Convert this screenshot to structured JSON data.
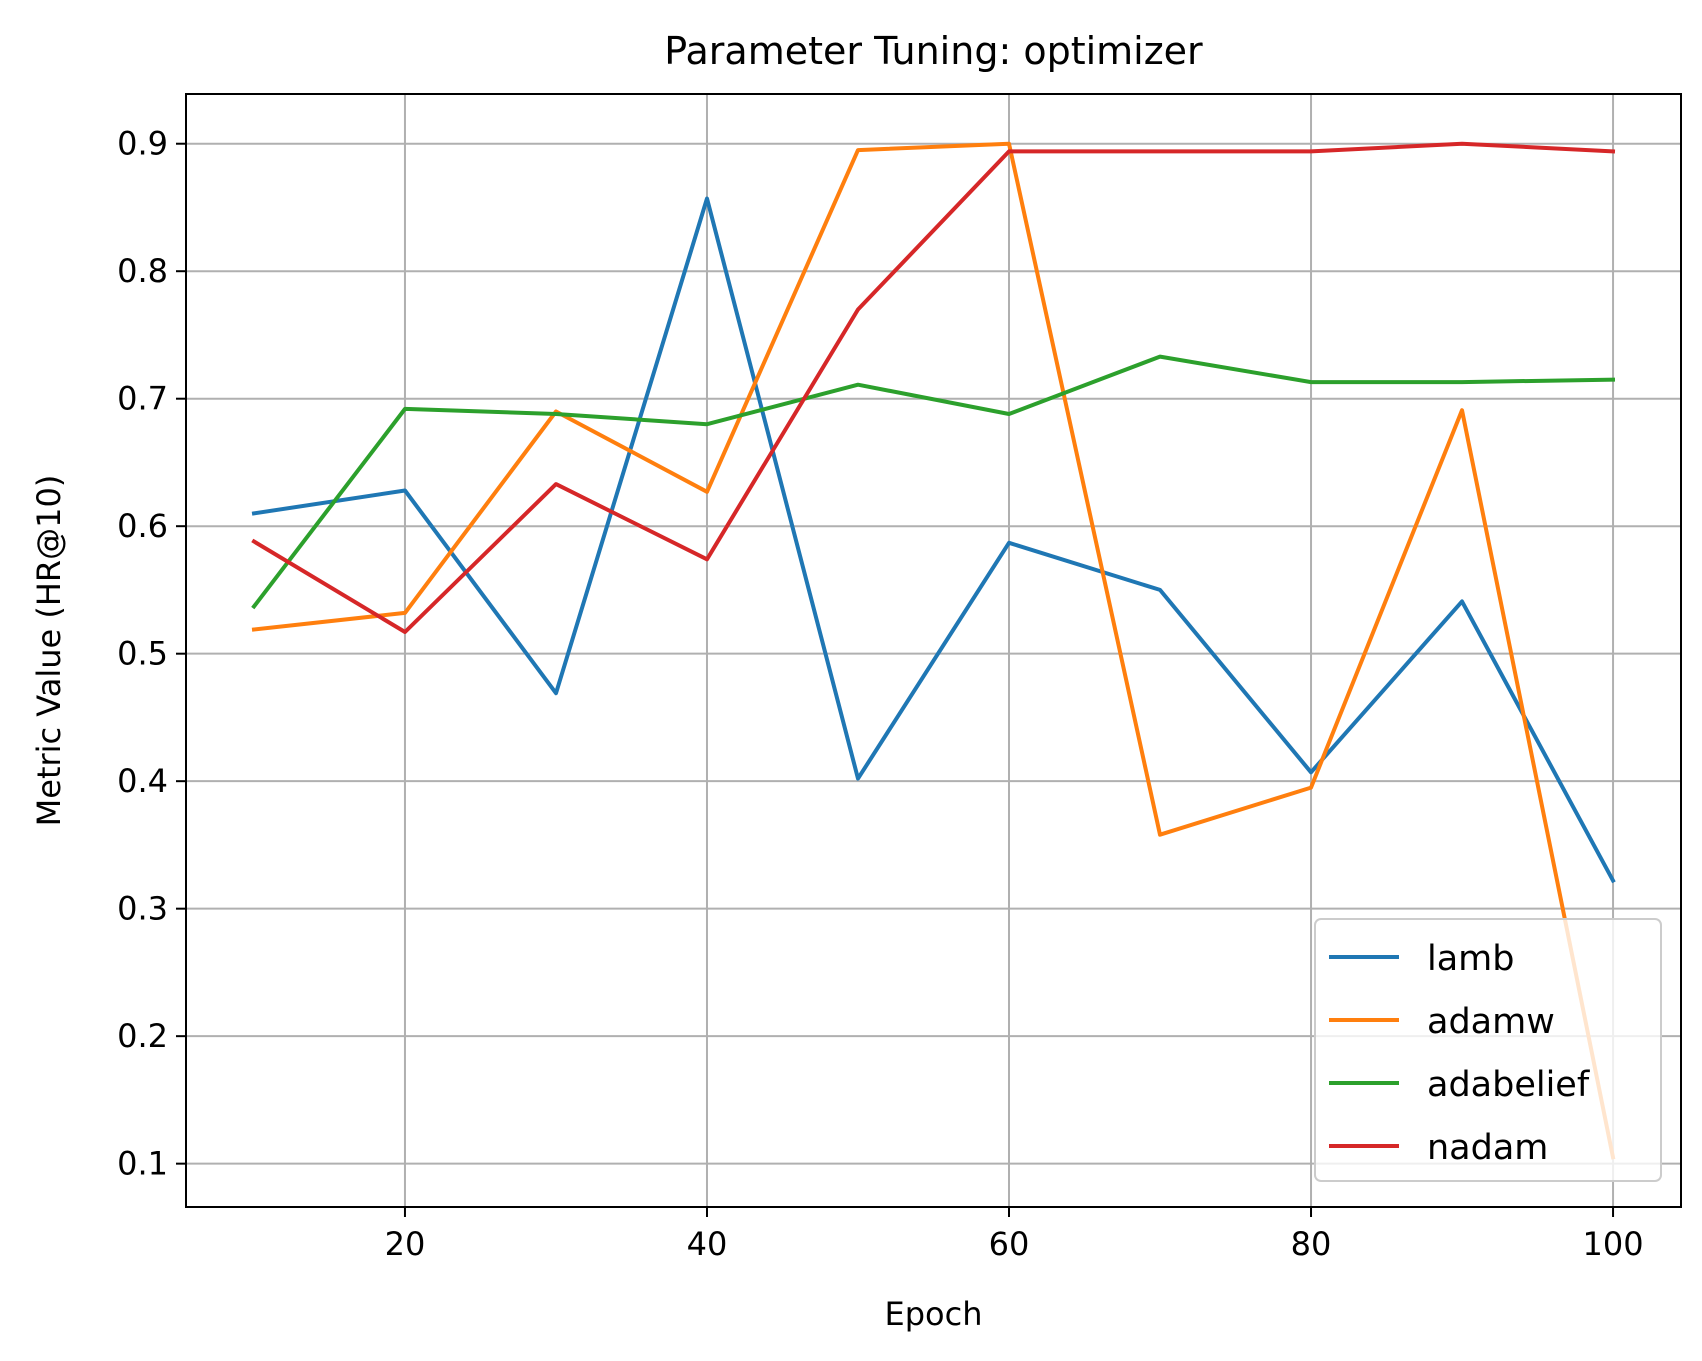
{
  "chart_data": {
    "type": "line",
    "title": "Parameter Tuning: optimizer",
    "xlabel": "Epoch",
    "ylabel": "Metric Value (HR@10)",
    "x": [
      10,
      20,
      30,
      40,
      50,
      60,
      70,
      80,
      90,
      100
    ],
    "xlim": [
      5.5,
      104.5
    ],
    "ylim": [
      0.066,
      0.939
    ],
    "xticks": [
      20,
      40,
      60,
      80,
      100
    ],
    "yticks": [
      0.1,
      0.2,
      0.3,
      0.4,
      0.5,
      0.6,
      0.7,
      0.8,
      0.9
    ],
    "xtick_labels": [
      "20",
      "40",
      "60",
      "80",
      "100"
    ],
    "ytick_labels": [
      "0.1",
      "0.2",
      "0.3",
      "0.4",
      "0.5",
      "0.6",
      "0.7",
      "0.8",
      "0.9"
    ],
    "grid": true,
    "legend_position": "lower right",
    "series": [
      {
        "name": "lamb",
        "color": "#1f77b4",
        "values": [
          0.61,
          0.628,
          0.469,
          0.857,
          0.402,
          0.587,
          0.55,
          0.407,
          0.541,
          0.322
        ]
      },
      {
        "name": "adamw",
        "color": "#ff7f0e",
        "values": [
          0.519,
          0.532,
          0.69,
          0.627,
          0.895,
          0.9,
          0.358,
          0.395,
          0.691,
          0.105
        ]
      },
      {
        "name": "adabelief",
        "color": "#2ca02c",
        "values": [
          0.537,
          0.692,
          0.688,
          0.68,
          0.711,
          0.688,
          0.733,
          0.713,
          0.713,
          0.715
        ]
      },
      {
        "name": "nadam",
        "color": "#d62728",
        "values": [
          0.588,
          0.517,
          0.633,
          0.574,
          0.77,
          0.894,
          0.894,
          0.894,
          0.9,
          0.894
        ]
      }
    ]
  }
}
